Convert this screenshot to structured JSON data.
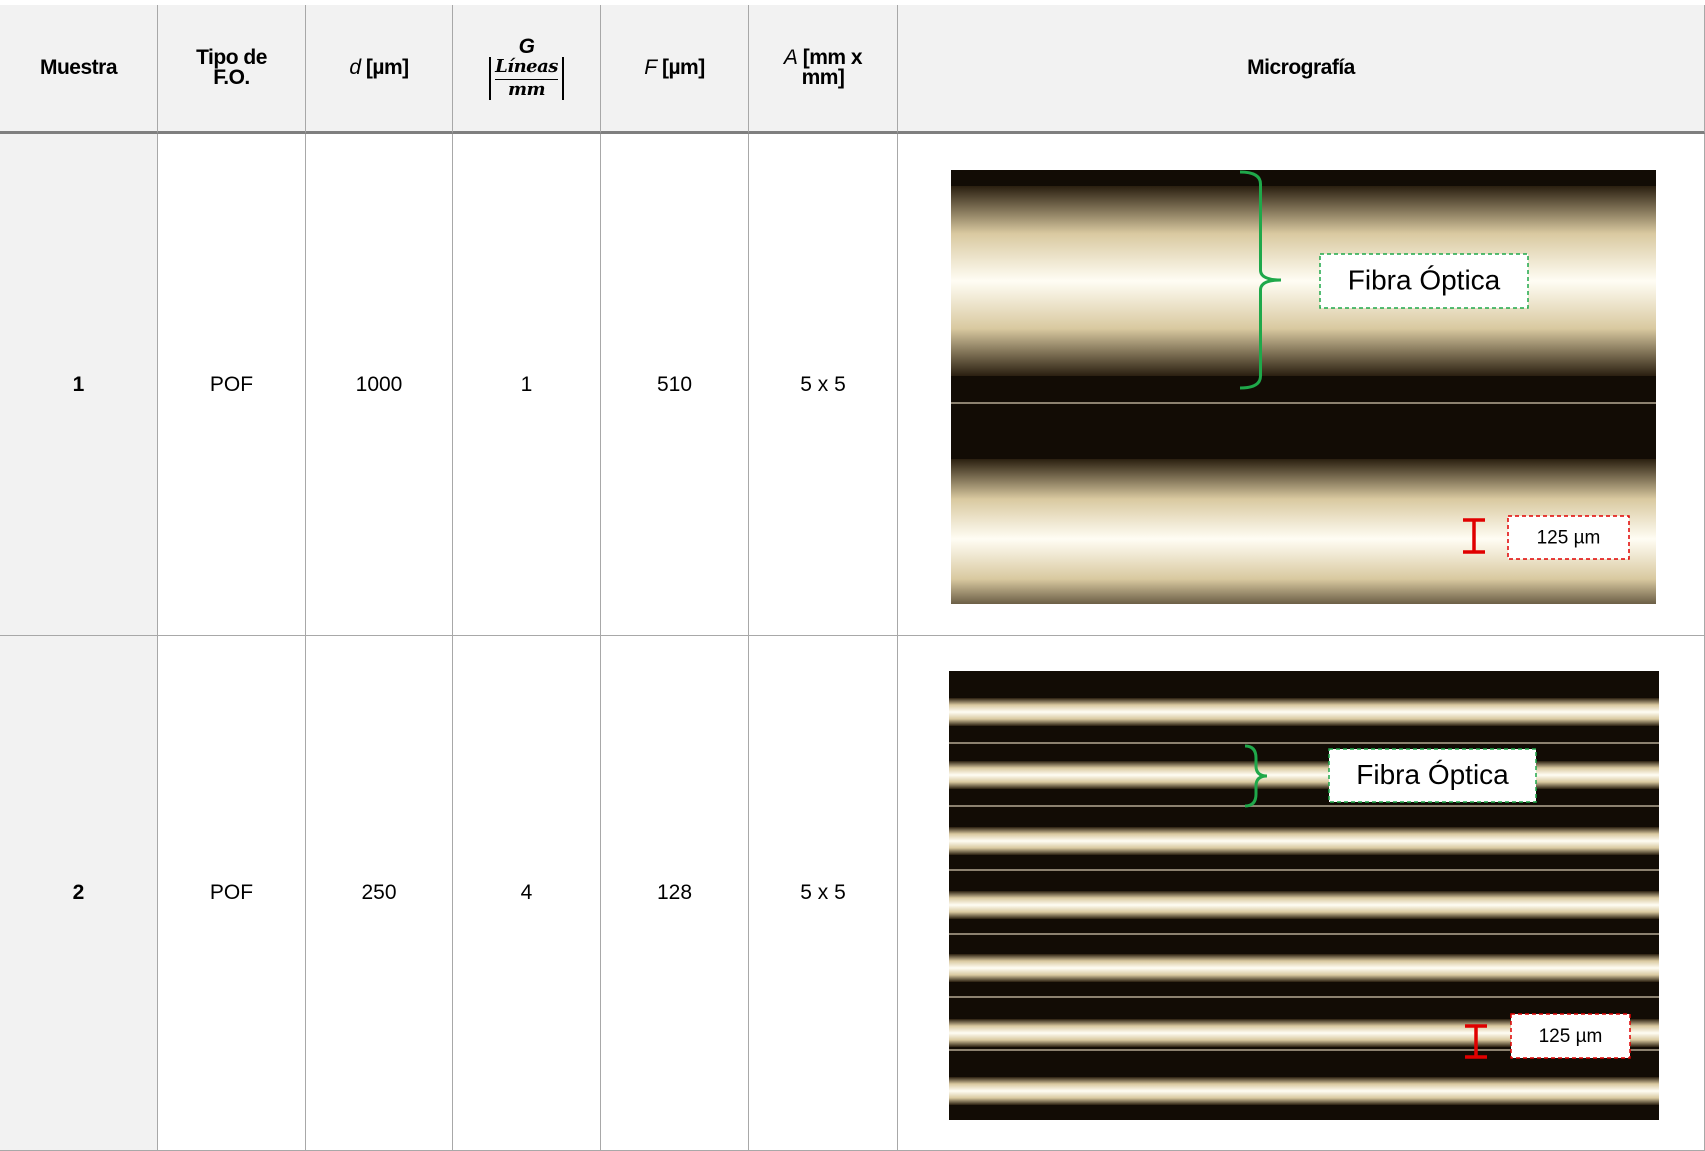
{
  "table": {
    "header": [
      {
        "text": "Muestra"
      },
      {
        "text": "Tipo de F.O."
      },
      {
        "symbol": "d",
        "unit": "[µm]"
      },
      {
        "symbol": "G",
        "numerator": "Líneas",
        "denominator": "mm"
      },
      {
        "symbol": "F",
        "unit": "[µm]"
      },
      {
        "symbol": "A",
        "unit": "[mm x mm]"
      },
      {
        "text": "Micrografía"
      }
    ],
    "rows": [
      [
        "1",
        "POF",
        "1000",
        "1",
        "510",
        "5 x 5"
      ],
      [
        "2",
        "POF",
        "250",
        "4",
        "128",
        "5 x 5"
      ]
    ]
  },
  "micrographs": [
    {
      "label": "Fibra Óptica",
      "scale": "125  µm"
    },
    {
      "label": "Fibra Óptica",
      "scale": "125  µm"
    }
  ]
}
